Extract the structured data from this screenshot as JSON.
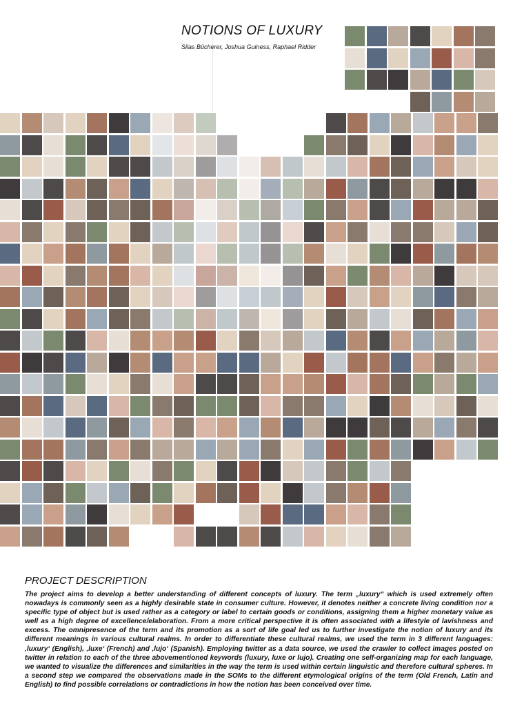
{
  "header": {
    "title": "NOTIONS OF LUXURY",
    "authors": "Silas Bücherer, Joshua Guiness, Raphael Ridder"
  },
  "mosaic": {
    "description_of_visual": null,
    "palette": [
      "#6e6258",
      "#8a7a6e",
      "#b9a99a",
      "#d6c8ba",
      "#4e4a4a",
      "#9aa7b5",
      "#c9a089",
      "#e2d2c0",
      "#7b8a6f",
      "#a3755e",
      "#5a6a80",
      "#d8b7a8",
      "#3f3b3c",
      "#c2c8cc",
      "#9a5c4a",
      "#e7dfd6",
      "#8e9aa0",
      "#b48c74"
    ]
  },
  "description": {
    "heading": "PROJECT DESCRIPTION",
    "text": "The project aims to develop a better understanding of different concepts of luxury. The term „luxury“ which is used extremely often nowadays is commonly seen as a highly desirable state in consumer culture. However, it denotes neither a concrete living condition nor a specific type of object but is used rather as a category or label to certain goods or conditions, assigning them a higher monetary value as well as a high degree of excellence/elaboration. From a more critical perspective it is often associated with a lifestyle of lavishness and excess. The omnipresence of the term and its promotion as a sort of life goal led us to further investigate the notion of luxury and its different meanings in various cultural realms. In order to differentiate these cultural realms, we used the term in 3 different languages: ‚luxury‘ (English), ‚luxe‘ (French) and ‚lujo‘ (Spanish). Employing twitter as a data source, we used the crawler to collect images posted on twitter in relation to each of the three abovementioned keywords (luxury, luxe or lujo). Creating one self-organizing map for each language, we wanted to visualize the differences and similarities in the way the term is used within certain linguistic and therefore cultural spheres. In a second step we compared the observations made in the SOMs to the different etymological origins of the term (Old French, Latin and English) to find possible correlations or contradictions in how the notion has been conceived over time."
  }
}
